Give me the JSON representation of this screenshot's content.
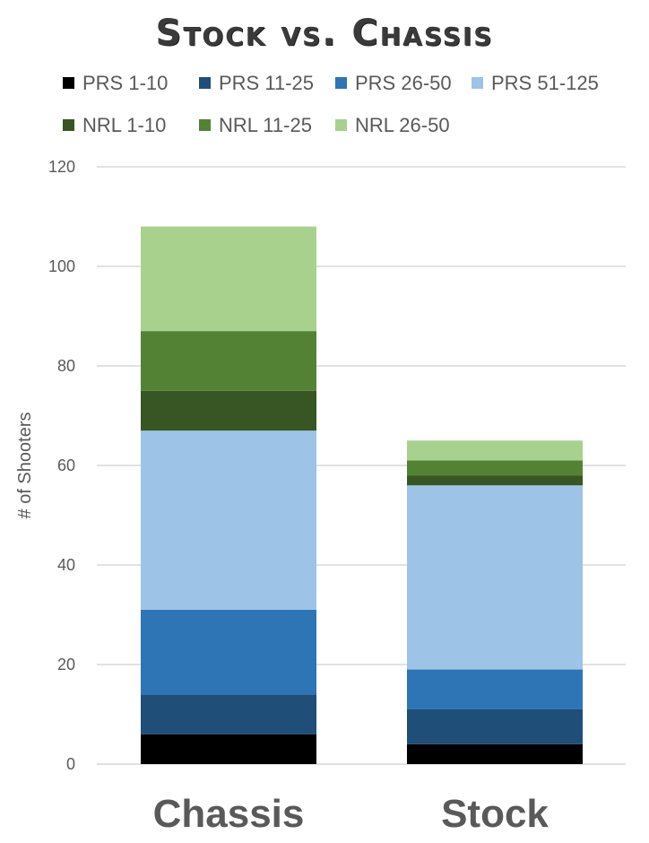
{
  "chart_data": {
    "type": "bar",
    "stacked": true,
    "title": "Stock vs. Chassis",
    "ylabel": "# of Shooters",
    "xlabel": "",
    "ylim": [
      0,
      120
    ],
    "yticks": [
      0,
      20,
      40,
      60,
      80,
      100,
      120
    ],
    "grid": true,
    "legend_position": "top",
    "categories": [
      "Chassis",
      "Stock"
    ],
    "series": [
      {
        "name": "PRS 1-10",
        "color": "#000000",
        "values": [
          6,
          4
        ]
      },
      {
        "name": "PRS 11-25",
        "color": "#1f4e79",
        "values": [
          8,
          7
        ]
      },
      {
        "name": "PRS 26-50",
        "color": "#2e75b6",
        "values": [
          17,
          8
        ]
      },
      {
        "name": "PRS 51-125",
        "color": "#9dc3e6",
        "values": [
          36,
          37
        ]
      },
      {
        "name": "NRL 1-10",
        "color": "#375623",
        "values": [
          8,
          2
        ]
      },
      {
        "name": "NRL 11-25",
        "color": "#548235",
        "values": [
          12,
          3
        ]
      },
      {
        "name": "NRL 26-50",
        "color": "#a9d18e",
        "values": [
          21,
          4
        ]
      }
    ]
  }
}
